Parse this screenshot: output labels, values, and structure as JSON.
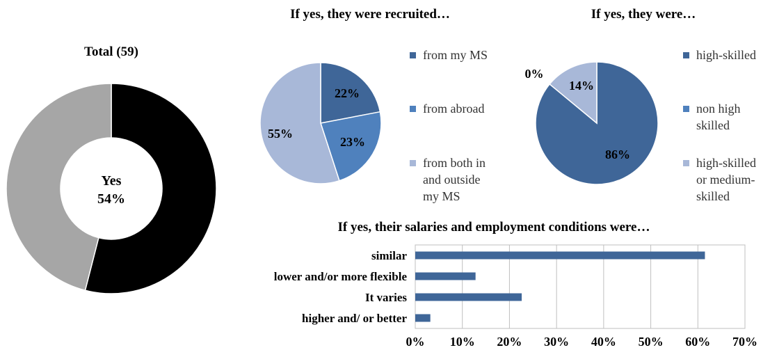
{
  "chart_data": [
    {
      "type": "pie",
      "variant": "donut",
      "title": "Total (59)",
      "center_label": "Yes",
      "center_value": "54%",
      "slices": [
        {
          "label": "Yes",
          "value": 54,
          "color": "#000000"
        },
        {
          "label": "",
          "value": 46,
          "color": "#a6a6a6"
        }
      ]
    },
    {
      "type": "pie",
      "title": "If yes, they were recruited…",
      "legend_placement": "right",
      "slices": [
        {
          "label": "from my MS",
          "value": 22,
          "text": "22%",
          "color": "#3f6698"
        },
        {
          "label": "from abroad",
          "value": 23,
          "text": "23%",
          "color": "#4f81bd"
        },
        {
          "label": "from both in and outside my MS",
          "value": 55,
          "text": "55%",
          "color": "#a8b8d8"
        }
      ],
      "legend": [
        {
          "lines": [
            "from my MS"
          ],
          "color": "#3f6698"
        },
        {
          "lines": [
            "from abroad"
          ],
          "color": "#4f81bd"
        },
        {
          "lines": [
            "from both in",
            "and outside",
            "my MS"
          ],
          "color": "#a8b8d8"
        }
      ]
    },
    {
      "type": "pie",
      "title": "If yes, they were…",
      "legend_placement": "right",
      "slices": [
        {
          "label": "high-skilled",
          "value": 86,
          "text": "86%",
          "color": "#3f6698"
        },
        {
          "label": "non high skilled",
          "value": 0,
          "text": "0%",
          "color": "#4f81bd"
        },
        {
          "label": "high-skilled or medium-skilled",
          "value": 14,
          "text": "14%",
          "color": "#a8b8d8"
        }
      ],
      "legend": [
        {
          "lines": [
            "high-skilled"
          ],
          "color": "#3f6698"
        },
        {
          "lines": [
            "non high",
            "skilled"
          ],
          "color": "#4f81bd"
        },
        {
          "lines": [
            "high-skilled",
            "or medium-",
            "skilled"
          ],
          "color": "#a8b8d8"
        }
      ]
    },
    {
      "type": "bar",
      "orientation": "horizontal",
      "title": "If yes, their salaries and employment conditions were…",
      "categories": [
        "similar",
        "lower and/or more flexible",
        "It varies",
        "higher and/ or better"
      ],
      "values": [
        61.5,
        12.8,
        22.6,
        3.2
      ],
      "xlim": [
        0,
        70
      ],
      "ticks": [
        0,
        10,
        20,
        30,
        40,
        50,
        60,
        70
      ],
      "tick_labels": [
        "0%",
        "10%",
        "20%",
        "30%",
        "40%",
        "50%",
        "60%",
        "70%"
      ],
      "grid": true,
      "color": "#3f6698"
    }
  ]
}
